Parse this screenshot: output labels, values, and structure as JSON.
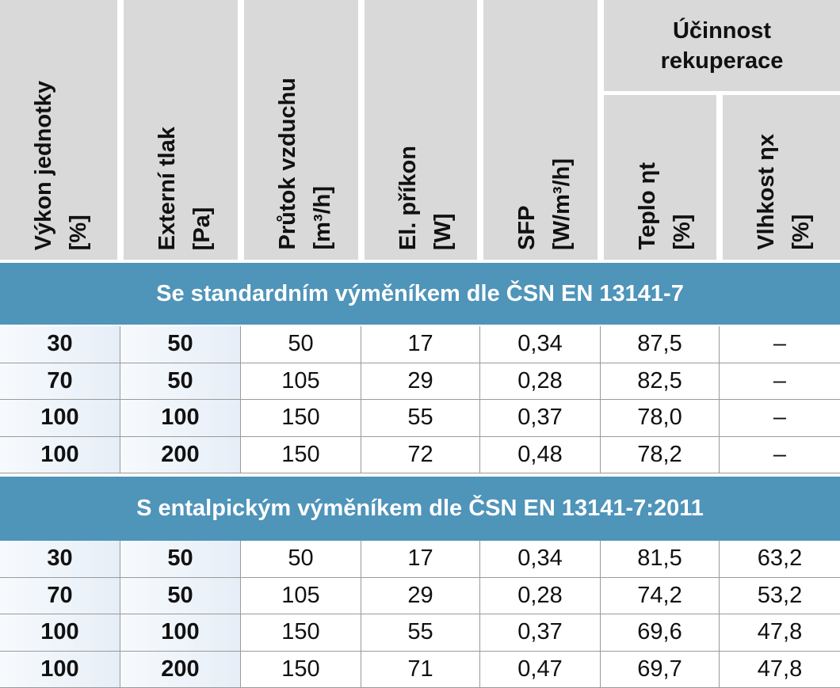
{
  "header": {
    "group": "Účinnost rekuperace",
    "columns": [
      {
        "name": "Výkon jednotky",
        "unit": "[%]"
      },
      {
        "name": "Externí tlak",
        "unit": "[Pa]"
      },
      {
        "name": "Průtok vzduchu",
        "unit": "[m³/h]"
      },
      {
        "name": "El. příkon",
        "unit": "[W]"
      },
      {
        "name": "SFP",
        "unit": "[W/m³/h]"
      },
      {
        "name": "Teplo ηt",
        "unit": "[%]"
      },
      {
        "name": "Vlhkost ηx",
        "unit": "[%]"
      }
    ]
  },
  "sections": [
    {
      "title": "Se standardním výměníkem dle ČSN EN 13141-7",
      "rows": [
        [
          "30",
          "50",
          "50",
          "17",
          "0,34",
          "87,5",
          "–"
        ],
        [
          "70",
          "50",
          "105",
          "29",
          "0,28",
          "82,5",
          "–"
        ],
        [
          "100",
          "100",
          "150",
          "55",
          "0,37",
          "78,0",
          "–"
        ],
        [
          "100",
          "200",
          "150",
          "72",
          "0,48",
          "78,2",
          "–"
        ]
      ]
    },
    {
      "title": "S entalpickým výměníkem dle ČSN EN 13141-7:2011",
      "rows": [
        [
          "30",
          "50",
          "50",
          "17",
          "0,34",
          "81,5",
          "63,2"
        ],
        [
          "70",
          "50",
          "105",
          "29",
          "0,28",
          "74,2",
          "53,2"
        ],
        [
          "100",
          "100",
          "150",
          "55",
          "0,37",
          "69,6",
          "47,8"
        ],
        [
          "100",
          "200",
          "150",
          "71",
          "0,47",
          "69,7",
          "47,8"
        ]
      ]
    }
  ]
}
